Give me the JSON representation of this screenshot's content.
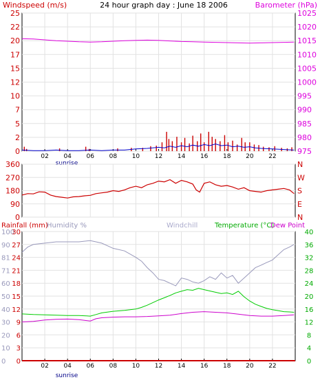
{
  "title": "24 hour graph day : June 18 2006",
  "x_ticks": [
    "02",
    "04",
    "06",
    "08",
    "10",
    "12",
    "14",
    "16",
    "18",
    "20",
    "22"
  ],
  "sunrise_label": "sunrise",
  "colors": {
    "wind": "#cc0000",
    "gust": "#0000cc",
    "baro": "#dd00dd",
    "dir": "#cc0000",
    "rain": "#cc0000",
    "humidity": "#9999bb",
    "windchill": "#aaaacc",
    "temp": "#00cc00",
    "dew": "#cc00cc",
    "grid": "#e2e2e2",
    "axis": "#000000"
  },
  "chart_data": [
    {
      "type": "bar",
      "title": "24 hour graph day : June 18 2006",
      "left_label": "Windspeed (m/s)",
      "right_label": "Barometer (hPa)",
      "left_ticks": [
        0,
        2,
        5,
        7,
        10,
        12,
        15,
        17,
        20,
        22,
        25
      ],
      "right_ticks": [
        975,
        980,
        985,
        990,
        995,
        1000,
        1005,
        1010,
        1015,
        1020,
        1025
      ],
      "ylim": [
        0,
        25
      ],
      "y2lim": [
        975,
        1025
      ],
      "xlim": [
        0,
        24
      ],
      "barometer": {
        "x": [
          0,
          1,
          2,
          3,
          4,
          5,
          6,
          7,
          8,
          9,
          10,
          11,
          12,
          13,
          14,
          15,
          16,
          17,
          18,
          19,
          20,
          21,
          22,
          23,
          23.9
        ],
        "y": [
          1015.7,
          1015.6,
          1015.3,
          1015.0,
          1014.8,
          1014.6,
          1014.5,
          1014.6,
          1014.8,
          1015.0,
          1015.1,
          1015.2,
          1015.1,
          1014.9,
          1014.7,
          1014.6,
          1014.5,
          1014.4,
          1014.3,
          1014.2,
          1014.1,
          1014.2,
          1014.3,
          1014.4,
          1014.5
        ]
      },
      "windspeed": {
        "x": [
          0.2,
          0.4,
          3.3,
          5.6,
          5.9,
          8.4,
          9.6,
          10.6,
          11.3,
          11.8,
          12.3,
          12.7,
          12.9,
          13.2,
          13.6,
          14.0,
          14.3,
          14.7,
          15.0,
          15.4,
          15.7,
          16.0,
          16.4,
          16.7,
          17.0,
          17.4,
          17.8,
          18.1,
          18.5,
          18.9,
          19.3,
          19.6,
          20.0,
          20.4,
          20.8,
          21.2,
          21.7,
          22.2,
          22.8,
          23.3,
          23.7
        ],
        "y": [
          0.8,
          0.4,
          0.5,
          0.8,
          0.4,
          0.5,
          0.6,
          0.6,
          0.9,
          1.0,
          1.6,
          3.5,
          2.2,
          1.8,
          2.6,
          1.6,
          2.4,
          1.4,
          2.8,
          1.8,
          3.2,
          1.6,
          3.5,
          2.6,
          2.2,
          1.8,
          2.9,
          1.6,
          1.9,
          1.2,
          2.4,
          1.6,
          1.6,
          1.2,
          1.1,
          0.8,
          0.7,
          0.9,
          0.6,
          0.5,
          0.7
        ]
      },
      "gust": {
        "x": [
          0,
          1,
          2,
          3,
          4,
          5,
          6,
          7,
          8,
          9,
          10,
          11,
          12,
          12.5,
          13,
          13.5,
          14,
          14.5,
          15,
          15.5,
          16,
          16.5,
          17,
          17.5,
          18,
          18.5,
          19,
          19.5,
          20,
          20.5,
          21,
          22,
          23,
          23.9
        ],
        "y": [
          0.2,
          0.1,
          0.1,
          0.2,
          0.1,
          0.1,
          0.2,
          0.1,
          0.2,
          0.2,
          0.4,
          0.5,
          0.7,
          0.6,
          0.9,
          0.7,
          1.0,
          0.8,
          1.1,
          0.9,
          1.2,
          1.0,
          1.3,
          1.0,
          1.1,
          0.8,
          0.9,
          0.7,
          0.8,
          0.6,
          0.5,
          0.4,
          0.3,
          0.2
        ]
      }
    },
    {
      "type": "line",
      "left_ticks": [
        0,
        90,
        180,
        270,
        360
      ],
      "right_ticks": [
        "N",
        "E",
        "S",
        "W",
        "N"
      ],
      "ylim": [
        0,
        360
      ],
      "xlim": [
        0,
        24
      ],
      "series": [
        {
          "x": [
            0,
            0.5,
            1,
            1.5,
            2,
            2.5,
            3,
            3.5,
            4,
            4.5,
            5,
            5.5,
            6,
            6.5,
            7,
            7.5,
            8,
            8.5,
            9,
            9.5,
            10,
            10.5,
            11,
            11.5,
            12,
            12.5,
            13,
            13.5,
            14,
            14.5,
            15,
            15.3,
            15.6,
            16,
            16.5,
            17,
            17.5,
            18,
            18.5,
            19,
            19.5,
            20,
            20.5,
            21,
            21.5,
            22,
            22.5,
            23,
            23.5,
            23.9
          ],
          "y": [
            150,
            160,
            158,
            172,
            170,
            150,
            140,
            135,
            130,
            138,
            140,
            145,
            148,
            160,
            165,
            170,
            180,
            175,
            185,
            200,
            210,
            200,
            220,
            230,
            245,
            240,
            255,
            230,
            250,
            240,
            225,
            185,
            170,
            230,
            240,
            220,
            210,
            215,
            205,
            190,
            200,
            180,
            175,
            170,
            180,
            185,
            190,
            195,
            185,
            160
          ]
        }
      ]
    },
    {
      "type": "line",
      "rainfall_label": "Rainfall (mm)",
      "humidity_label": "Humidity %",
      "windchill_label": "Windchill",
      "temperature_label": "Temperature (°C)",
      "dewpoint_label": "Dew Point",
      "humidity_ticks": [
        0,
        10,
        20,
        30,
        40,
        50,
        60,
        71,
        81,
        90,
        100
      ],
      "rain_ticks": [
        0,
        3,
        6,
        9,
        12,
        15,
        18,
        21,
        24,
        27,
        30
      ],
      "temp_ticks": [
        0,
        4,
        8,
        12,
        16,
        20,
        24,
        28,
        32,
        36,
        40
      ],
      "ylim": [
        0,
        40
      ],
      "xlim": [
        0,
        24
      ],
      "rainfall": {
        "x": [
          0,
          24
        ],
        "y": [
          0,
          0
        ]
      },
      "humidity": {
        "x": [
          0,
          0.5,
          1,
          2,
          3,
          4,
          5,
          6,
          6.5,
          7,
          7.5,
          8,
          9,
          10,
          10.5,
          11,
          11.5,
          12,
          12.5,
          13,
          13.5,
          14,
          14.5,
          15,
          15.5,
          16,
          16.5,
          17,
          17.5,
          18,
          18.5,
          19,
          19.5,
          20,
          20.5,
          21,
          21.5,
          22,
          22.5,
          23,
          23.5,
          23.9
        ],
        "y": [
          84,
          88,
          90,
          91,
          92,
          92,
          92,
          93,
          92,
          91,
          89,
          87,
          85,
          80,
          77,
          72,
          68,
          63,
          62,
          60,
          58,
          64,
          63,
          61,
          60,
          62,
          65,
          63,
          68,
          64,
          66,
          60,
          64,
          68,
          72,
          74,
          76,
          78,
          82,
          86,
          88,
          90
        ]
      },
      "temperature": {
        "x": [
          0,
          1,
          2,
          3,
          4,
          5,
          6,
          6.5,
          7,
          8,
          9,
          10,
          10.5,
          11,
          11.5,
          12,
          12.5,
          13,
          13.5,
          14,
          14.5,
          15,
          15.5,
          16,
          16.5,
          17,
          17.5,
          18,
          18.5,
          19,
          19.5,
          20,
          20.5,
          21,
          21.5,
          22,
          22.5,
          23,
          23.5,
          23.9
        ],
        "y": [
          14.5,
          14.3,
          14.2,
          14.1,
          14.0,
          14.0,
          13.8,
          14.3,
          14.8,
          15.3,
          15.6,
          16.0,
          16.5,
          17.2,
          18.0,
          18.8,
          19.5,
          20.2,
          21.0,
          21.5,
          22.0,
          21.8,
          22.4,
          22.0,
          21.6,
          21.2,
          20.8,
          21.0,
          20.5,
          21.5,
          19.8,
          18.5,
          17.5,
          16.8,
          16.2,
          15.8,
          15.5,
          15.2,
          15.1,
          15.0
        ]
      },
      "dewpoint": {
        "x": [
          0,
          1,
          2,
          3,
          4,
          5,
          6,
          6.5,
          7,
          8,
          9,
          10,
          11,
          12,
          13,
          14,
          15,
          16,
          17,
          18,
          19,
          20,
          21,
          22,
          23,
          23.9
        ],
        "y": [
          12.0,
          12.2,
          12.6,
          12.8,
          12.9,
          12.7,
          12.3,
          13.0,
          13.3,
          13.5,
          13.6,
          13.6,
          13.7,
          13.9,
          14.1,
          14.6,
          15.0,
          15.2,
          15.0,
          14.8,
          14.4,
          14.0,
          13.8,
          13.8,
          14.0,
          14.2
        ]
      }
    }
  ]
}
